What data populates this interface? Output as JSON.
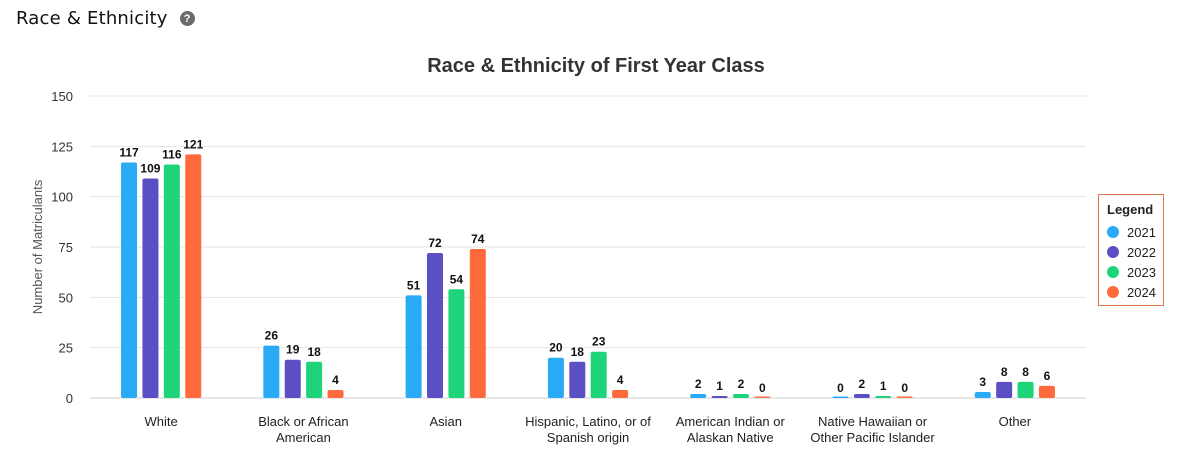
{
  "header": {
    "title": "Race & Ethnicity",
    "help_icon": "question-circle-icon",
    "help_glyph": "?"
  },
  "legend": {
    "title": "Legend"
  },
  "colors": {
    "2021": "#29aaf4",
    "2022": "#5b4fc4",
    "2023": "#1ed47a",
    "2024": "#ff6a3d",
    "grid": "#e6e6e6",
    "legend_border": "#e07a4a"
  },
  "chart_data": {
    "type": "bar",
    "title": "Race & Ethnicity of First Year Class",
    "ylabel": "Number of Matriculants",
    "xlabel": "",
    "ylim": [
      0,
      150
    ],
    "yticks": [
      0,
      25,
      50,
      75,
      100,
      125,
      150
    ],
    "grid": true,
    "legend_position": "right",
    "categories": [
      [
        "White"
      ],
      [
        "Black or African",
        "American"
      ],
      [
        "Asian"
      ],
      [
        "Hispanic, Latino, or of",
        "Spanish origin"
      ],
      [
        "American Indian or",
        "Alaskan Native"
      ],
      [
        "Native Hawaiian or",
        "Other Pacific Islander"
      ],
      [
        "Other"
      ]
    ],
    "series": [
      {
        "name": "2021",
        "values": [
          117,
          26,
          51,
          20,
          2,
          0,
          3
        ]
      },
      {
        "name": "2022",
        "values": [
          109,
          19,
          72,
          18,
          1,
          2,
          8
        ]
      },
      {
        "name": "2023",
        "values": [
          116,
          18,
          54,
          23,
          2,
          1,
          8
        ]
      },
      {
        "name": "2024",
        "values": [
          121,
          4,
          74,
          4,
          0,
          0,
          6
        ]
      }
    ]
  }
}
